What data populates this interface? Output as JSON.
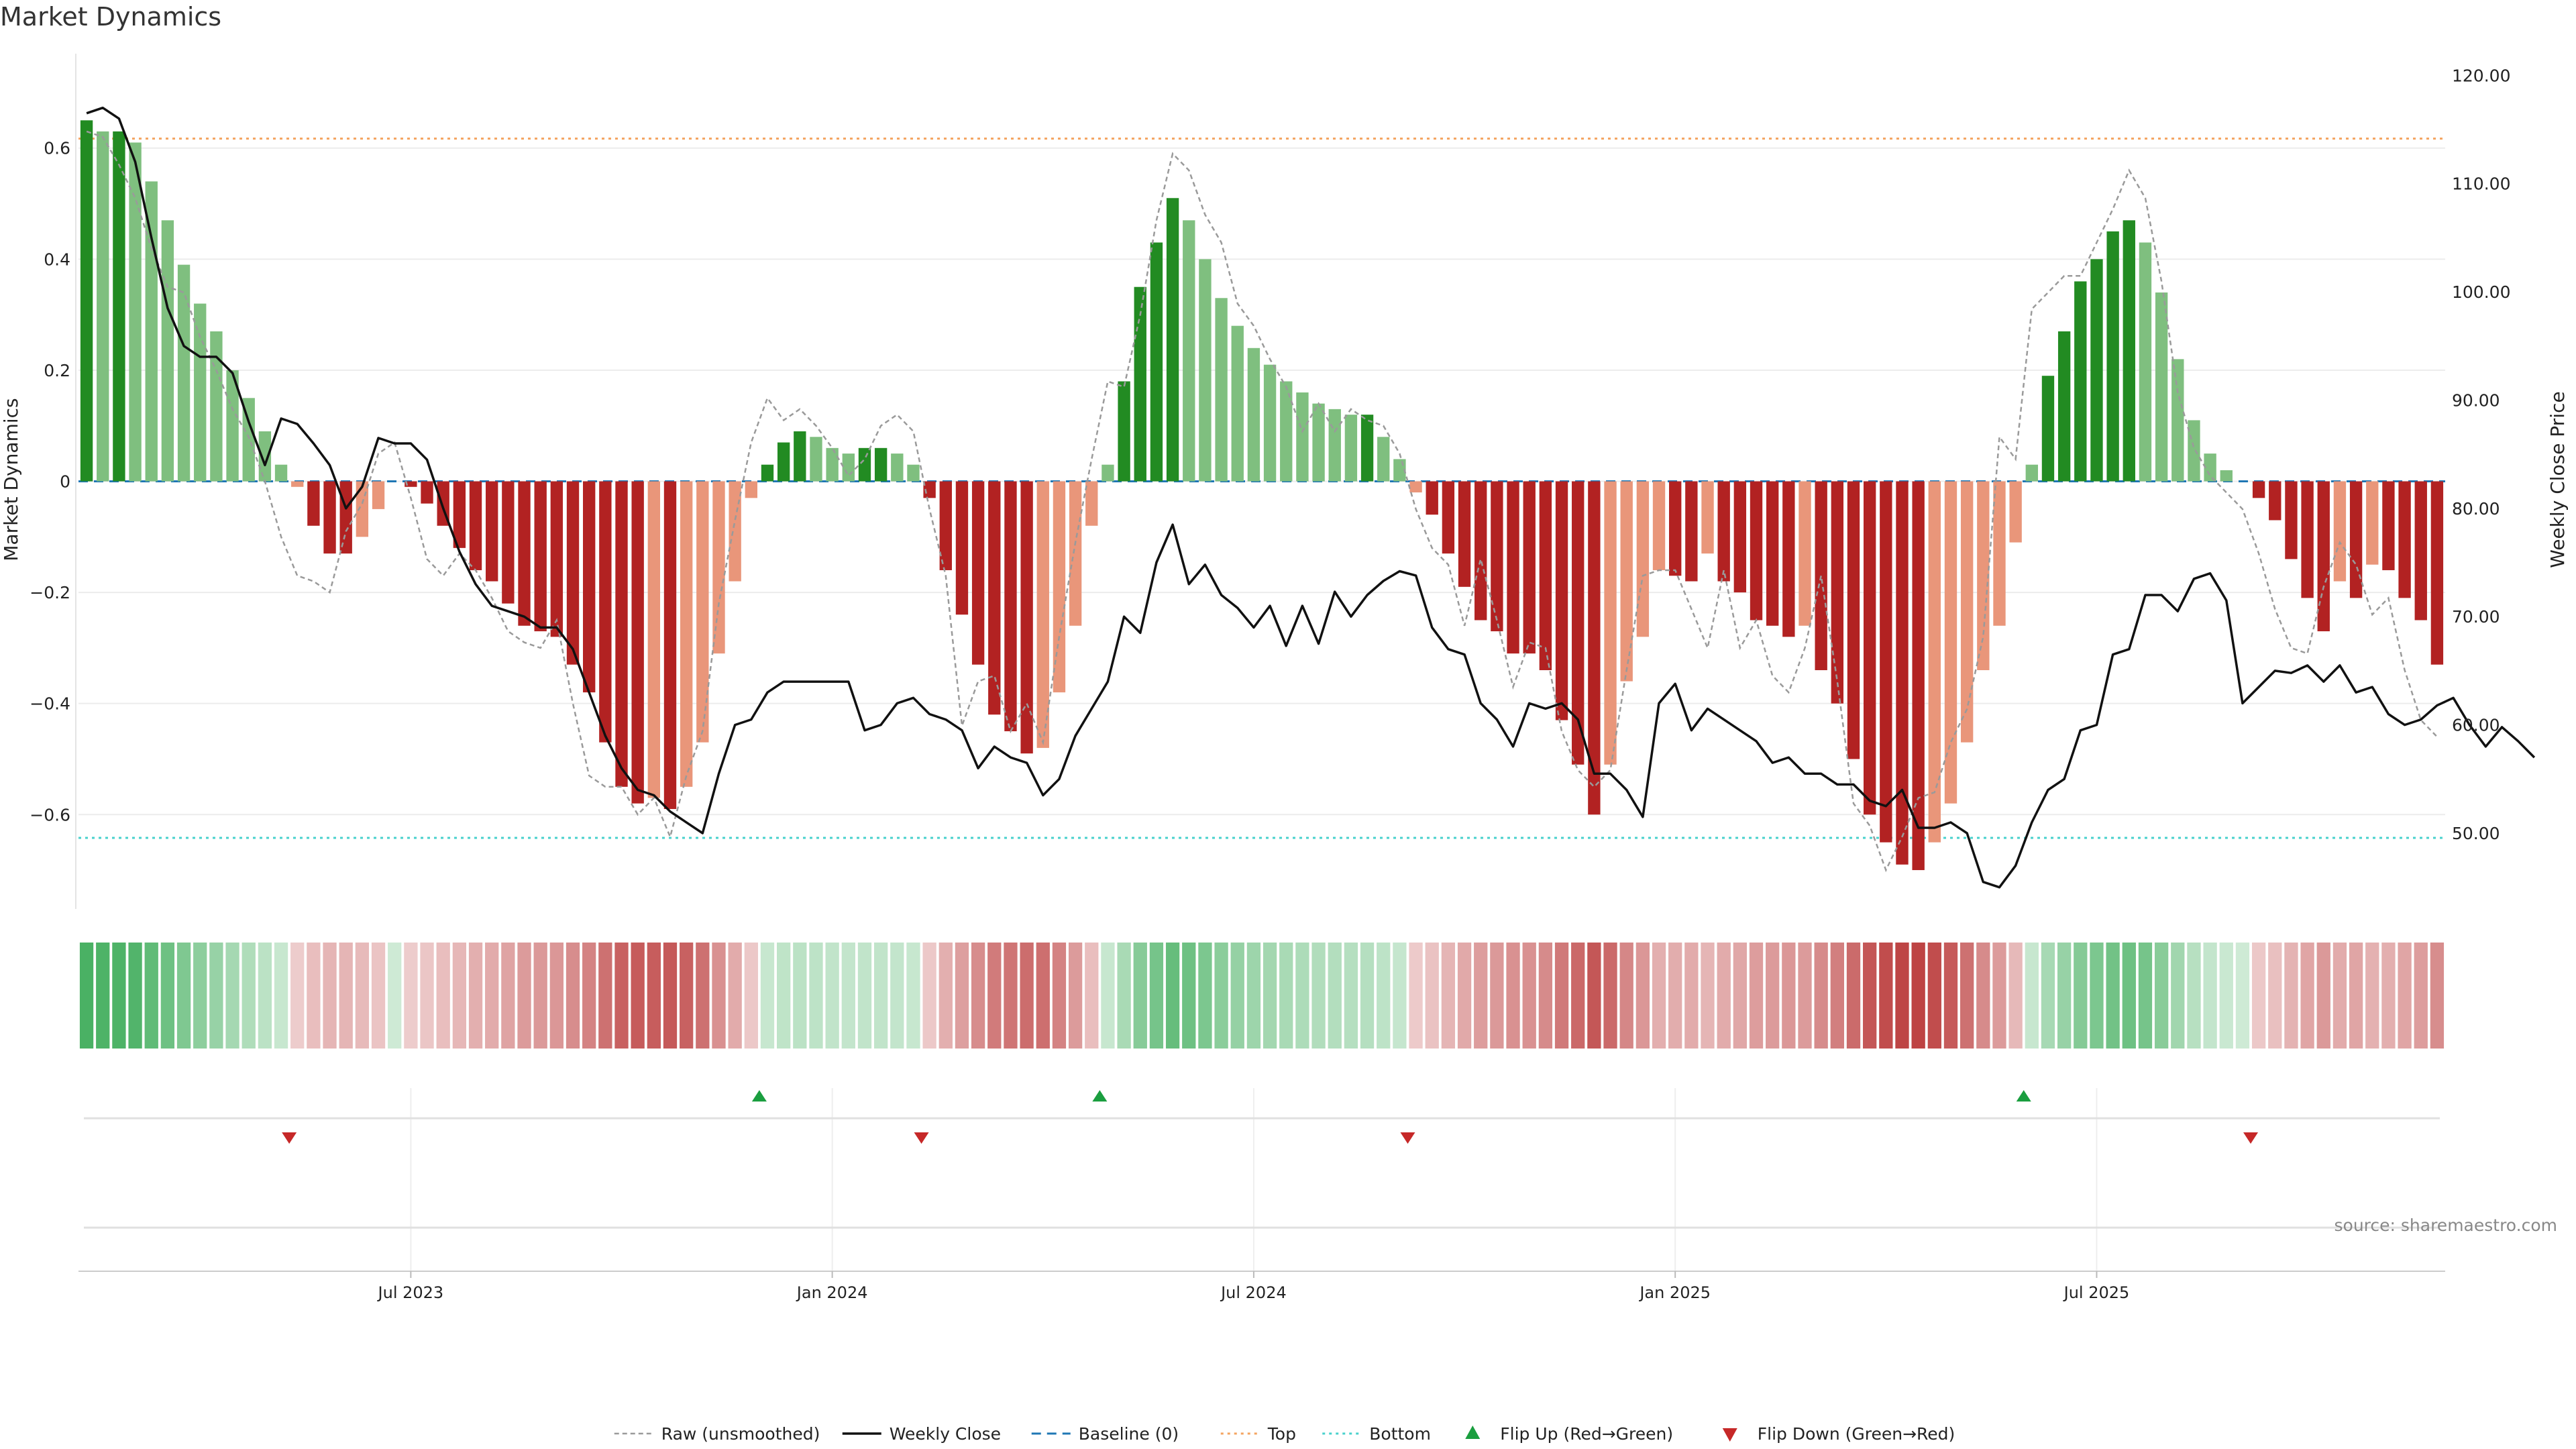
{
  "chart_data": {
    "type": "bar",
    "title": "Market Dynamics",
    "ylabel_left": "Market Dynamics",
    "ylabel_right": "Weekly Close Price",
    "source": "source: sharemaestro.com",
    "y_left_ticks": [
      {
        "v": 0.6,
        "label": "0.6"
      },
      {
        "v": 0.4,
        "label": "0.4"
      },
      {
        "v": 0.2,
        "label": "0.2"
      },
      {
        "v": 0,
        "label": "0"
      },
      {
        "v": -0.2,
        "label": "−0.2"
      },
      {
        "v": -0.4,
        "label": "−0.4"
      },
      {
        "v": -0.6,
        "label": "−0.6"
      }
    ],
    "y_right_ticks": [
      {
        "v": 120,
        "label": "120.00"
      },
      {
        "v": 110,
        "label": "110.00"
      },
      {
        "v": 100,
        "label": "100.00"
      },
      {
        "v": 90,
        "label": "90.00"
      },
      {
        "v": 80,
        "label": "80.00"
      },
      {
        "v": 70,
        "label": "70.00"
      },
      {
        "v": 60,
        "label": "60.00"
      },
      {
        "v": 50,
        "label": "50.00"
      }
    ],
    "x_ticks": [
      {
        "week": 20,
        "label": "Jul 2023"
      },
      {
        "week": 46,
        "label": "Jan 2024"
      },
      {
        "week": 72,
        "label": "Jul 2024"
      },
      {
        "week": 98,
        "label": "Jan 2025"
      },
      {
        "week": 124,
        "label": "Jul 2025"
      }
    ],
    "ylim_left": [
      -0.77,
      0.77
    ],
    "ylim_right": [
      43,
      122
    ],
    "top_line": 0.617,
    "bottom_line": -0.642,
    "smoothed": [
      0.65,
      0.63,
      0.63,
      0.61,
      0.54,
      0.47,
      0.39,
      0.32,
      0.27,
      0.2,
      0.15,
      0.09,
      0.03,
      -0.01,
      -0.08,
      -0.13,
      -0.13,
      -0.1,
      -0.05,
      0,
      -0.01,
      -0.04,
      -0.08,
      -0.12,
      -0.16,
      -0.18,
      -0.22,
      -0.26,
      -0.27,
      -0.28,
      -0.33,
      -0.38,
      -0.47,
      -0.55,
      -0.58,
      -0.57,
      -0.59,
      -0.55,
      -0.47,
      -0.31,
      -0.18,
      -0.03,
      0.03,
      0.07,
      0.09,
      0.08,
      0.06,
      0.05,
      0.06,
      0.06,
      0.05,
      0.03,
      -0.03,
      -0.16,
      -0.24,
      -0.33,
      -0.42,
      -0.45,
      -0.49,
      -0.48,
      -0.38,
      -0.26,
      -0.08,
      0.03,
      0.18,
      0.35,
      0.43,
      0.51,
      0.47,
      0.4,
      0.33,
      0.28,
      0.24,
      0.21,
      0.18,
      0.16,
      0.14,
      0.13,
      0.12,
      0.12,
      0.08,
      0.04,
      -0.02,
      -0.06,
      -0.13,
      -0.19,
      -0.25,
      -0.27,
      -0.31,
      -0.31,
      -0.34,
      -0.43,
      -0.51,
      -0.6,
      -0.51,
      -0.36,
      -0.28,
      -0.16,
      -0.17,
      -0.18,
      -0.13,
      -0.18,
      -0.2,
      -0.25,
      -0.26,
      -0.28,
      -0.26,
      -0.34,
      -0.4,
      -0.5,
      -0.6,
      -0.65,
      -0.69,
      -0.7,
      -0.65,
      -0.58,
      -0.47,
      -0.34,
      -0.26,
      -0.11,
      0.03,
      0.19,
      0.27,
      0.36,
      0.4,
      0.45,
      0.47,
      0.43,
      0.34,
      0.22,
      0.11,
      0.05,
      0.02,
      0,
      -0.03,
      -0.07,
      -0.14,
      -0.21,
      -0.27,
      -0.18,
      -0.21,
      -0.15,
      -0.16,
      -0.21,
      -0.25,
      -0.33
    ],
    "raw": [
      0.63,
      0.62,
      0.57,
      0.51,
      0.42,
      0.35,
      0.34,
      0.26,
      0.2,
      0.13,
      0.08,
      0.0,
      -0.1,
      -0.17,
      -0.18,
      -0.2,
      -0.09,
      -0.04,
      0.05,
      0.07,
      -0.03,
      -0.14,
      -0.17,
      -0.13,
      -0.16,
      -0.21,
      -0.27,
      -0.29,
      -0.3,
      -0.25,
      -0.4,
      -0.53,
      -0.55,
      -0.55,
      -0.6,
      -0.57,
      -0.64,
      -0.53,
      -0.45,
      -0.22,
      -0.07,
      0.07,
      0.15,
      0.11,
      0.13,
      0.1,
      0.06,
      0.01,
      0.04,
      0.1,
      0.12,
      0.09,
      -0.05,
      -0.17,
      -0.44,
      -0.36,
      -0.35,
      -0.45,
      -0.4,
      -0.47,
      -0.28,
      -0.11,
      0.04,
      0.18,
      0.17,
      0.3,
      0.47,
      0.59,
      0.56,
      0.48,
      0.43,
      0.32,
      0.28,
      0.22,
      0.17,
      0.09,
      0.14,
      0.09,
      0.13,
      0.11,
      0.1,
      0.05,
      -0.05,
      -0.12,
      -0.15,
      -0.26,
      -0.14,
      -0.25,
      -0.37,
      -0.29,
      -0.3,
      -0.45,
      -0.52,
      -0.55,
      -0.52,
      -0.34,
      -0.17,
      -0.16,
      -0.16,
      -0.23,
      -0.3,
      -0.16,
      -0.3,
      -0.25,
      -0.35,
      -0.38,
      -0.3,
      -0.17,
      -0.36,
      -0.58,
      -0.62,
      -0.7,
      -0.64,
      -0.57,
      -0.56,
      -0.47,
      -0.41,
      -0.28,
      0.08,
      0.04,
      0.31,
      0.34,
      0.37,
      0.37,
      0.43,
      0.49,
      0.56,
      0.51,
      0.36,
      0.16,
      0.06,
      0.01,
      -0.02,
      -0.05,
      -0.13,
      -0.23,
      -0.3,
      -0.31,
      -0.19,
      -0.11,
      -0.15,
      -0.24,
      -0.21,
      -0.34,
      -0.43,
      -0.46
    ],
    "weekly_close": [
      116.5,
      117,
      116,
      112,
      105,
      98.5,
      95,
      94,
      94,
      92.5,
      88,
      84,
      88.3,
      87.8,
      86,
      84,
      80,
      82,
      86.5,
      86,
      86,
      84.5,
      80,
      76,
      73,
      71,
      70.5,
      70,
      69,
      69,
      67,
      63,
      59,
      56,
      54,
      53.5,
      52,
      51,
      50,
      55.5,
      60,
      60.5,
      63,
      64,
      64,
      64,
      64,
      64,
      59.5,
      60,
      62,
      62.5,
      61,
      60.5,
      59.5,
      56,
      58,
      57,
      56.5,
      53.5,
      55,
      59,
      61.5,
      64,
      70,
      68.5,
      75,
      78.5,
      73,
      74.8,
      72,
      70.8,
      69,
      71,
      67.3,
      71,
      67.5,
      72.3,
      70,
      72,
      73.3,
      74.2,
      73.8,
      69,
      67,
      66.5,
      62,
      60.5,
      58,
      62,
      61.5,
      62,
      60.5,
      55.5,
      55.5,
      54,
      51.5,
      62,
      63.8,
      59.5,
      61.5,
      60.5,
      59.5,
      58.5,
      56.5,
      57,
      55.5,
      55.5,
      54.5,
      54.5,
      53,
      52.5,
      54,
      50.5,
      50.5,
      51,
      50,
      45.5,
      45,
      47,
      51,
      54,
      55,
      59.5,
      60,
      66.5,
      67,
      72,
      72,
      70.5,
      73.5,
      74,
      71.5,
      62,
      63.5,
      65,
      64.8,
      65.5,
      64,
      65.5,
      63,
      63.5,
      61,
      60,
      60.5,
      61.8,
      62.5,
      60,
      58,
      59.8,
      58.5,
      57
    ]
  },
  "legend": [
    {
      "label": "Raw (unsmoothed)",
      "kind": "dash-gray"
    },
    {
      "label": "Weekly Close",
      "kind": "solid-black"
    },
    {
      "label": "Baseline (0)",
      "kind": "dash-blue"
    },
    {
      "label": "Top",
      "kind": "dot-orange"
    },
    {
      "label": "Bottom",
      "kind": "dot-cyan"
    },
    {
      "label": "Flip Up (Red→Green)",
      "kind": "tri-up"
    },
    {
      "label": "Flip Down (Green→Red)",
      "kind": "tri-down"
    }
  ],
  "colors": {
    "green_strong": "#228b22",
    "green_light": "#7fbf7f",
    "red_strong": "#b22222",
    "red_light": "#e9967a",
    "flip_up": "#1a9e3f",
    "flip_down": "#c62828",
    "baseline": "#1f77b4",
    "top": "#f4a460",
    "bottom": "#48d1cc"
  }
}
